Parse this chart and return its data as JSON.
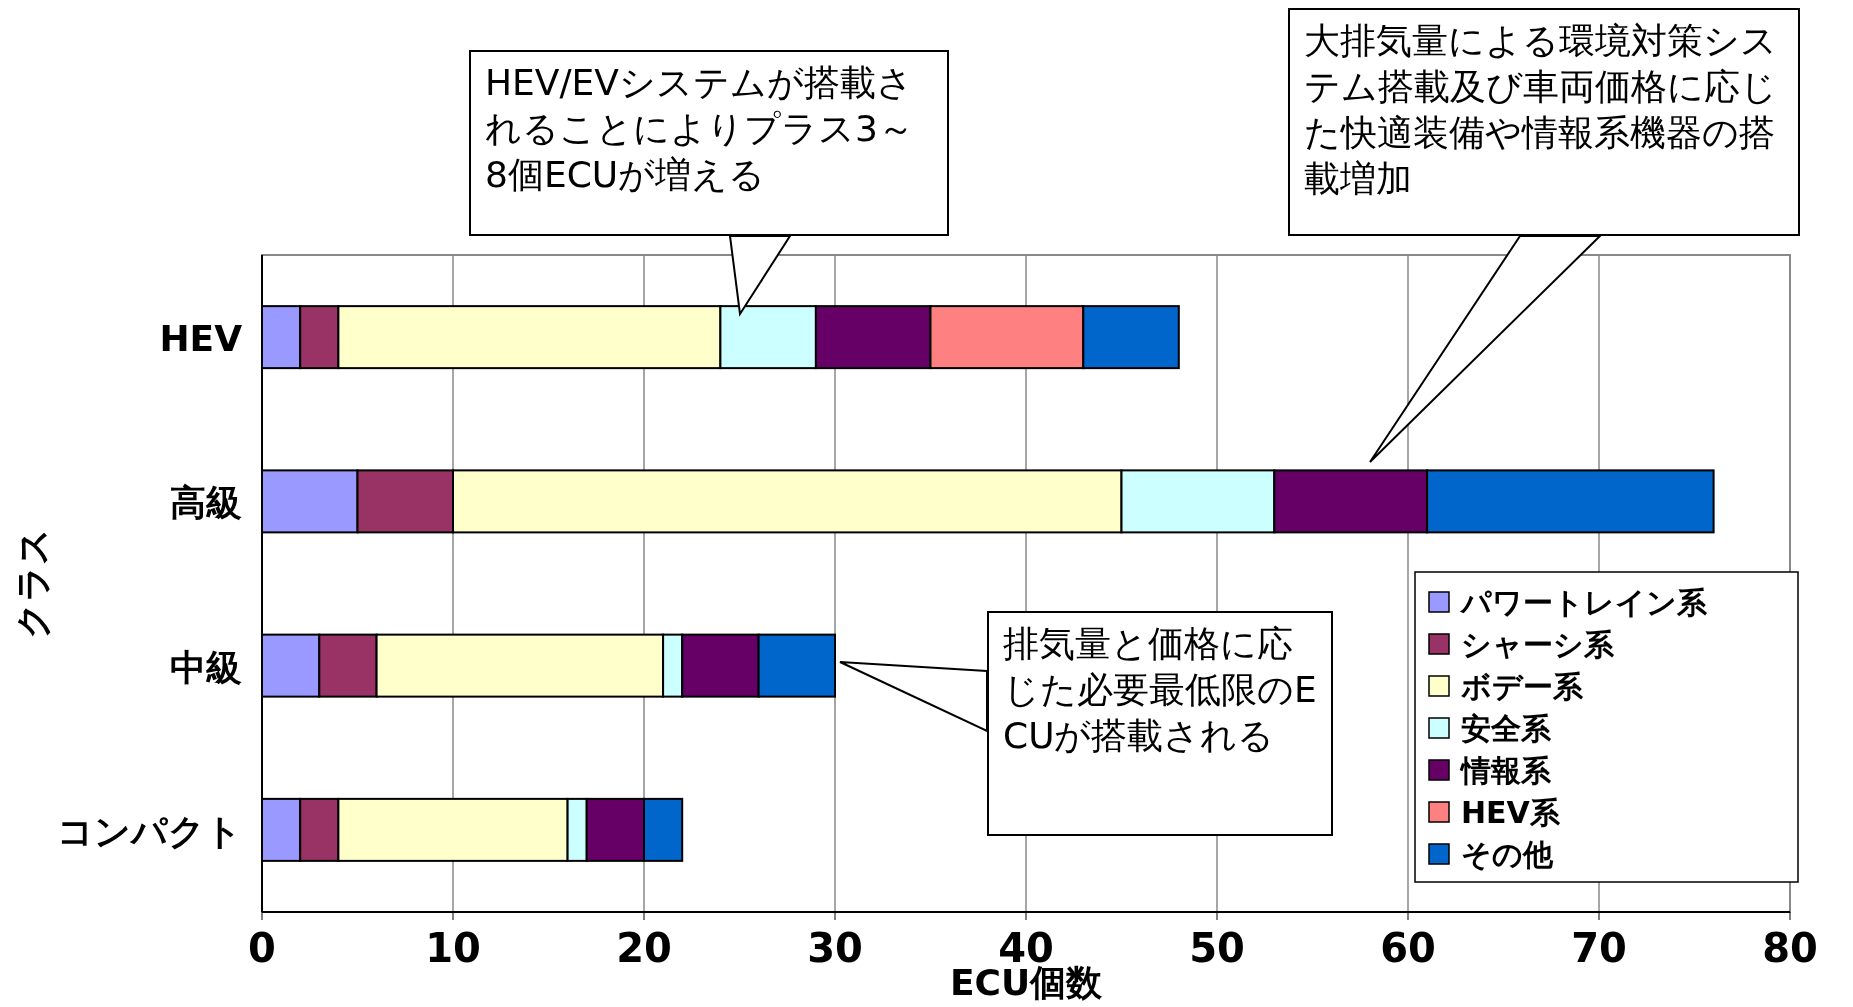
{
  "chart_data": {
    "type": "bar",
    "orientation": "horizontal",
    "stacked": true,
    "categories": [
      "HEV",
      "高級",
      "中級",
      "コンパクト"
    ],
    "series": [
      {
        "name": "パワートレイン系",
        "color": "#9999ff",
        "values": [
          2,
          5,
          3,
          2
        ]
      },
      {
        "name": "シャーシ系",
        "color": "#993366",
        "values": [
          2,
          5,
          3,
          2
        ]
      },
      {
        "name": "ボデー系",
        "color": "#ffffcc",
        "values": [
          20,
          35,
          15,
          12
        ]
      },
      {
        "name": "安全系",
        "color": "#ccffff",
        "values": [
          5,
          8,
          1,
          1
        ]
      },
      {
        "name": "情報系",
        "color": "#660066",
        "values": [
          6,
          8,
          4,
          3
        ]
      },
      {
        "name": "HEV系",
        "color": "#ff8080",
        "values": [
          8,
          0,
          0,
          0
        ]
      },
      {
        "name": "その他",
        "color": "#0066cc",
        "values": [
          5,
          15,
          4,
          2
        ]
      }
    ],
    "xlim": [
      0,
      80
    ],
    "xticks": [
      0,
      10,
      20,
      30,
      40,
      50,
      60,
      70,
      80
    ],
    "xlabel": "ECU個数",
    "ylabel": "クラス",
    "grid": "x",
    "legend": "right",
    "annotations": [
      "HEV/EVシステムが搭載されることによりプラス3～8個ECUが増える",
      "大排気量による環境対策システム搭載及び車両価格に応じた快適装備や情報系機器の搭載増加",
      "排気量と価格に応じた必要最低限のECUが搭載される"
    ]
  }
}
